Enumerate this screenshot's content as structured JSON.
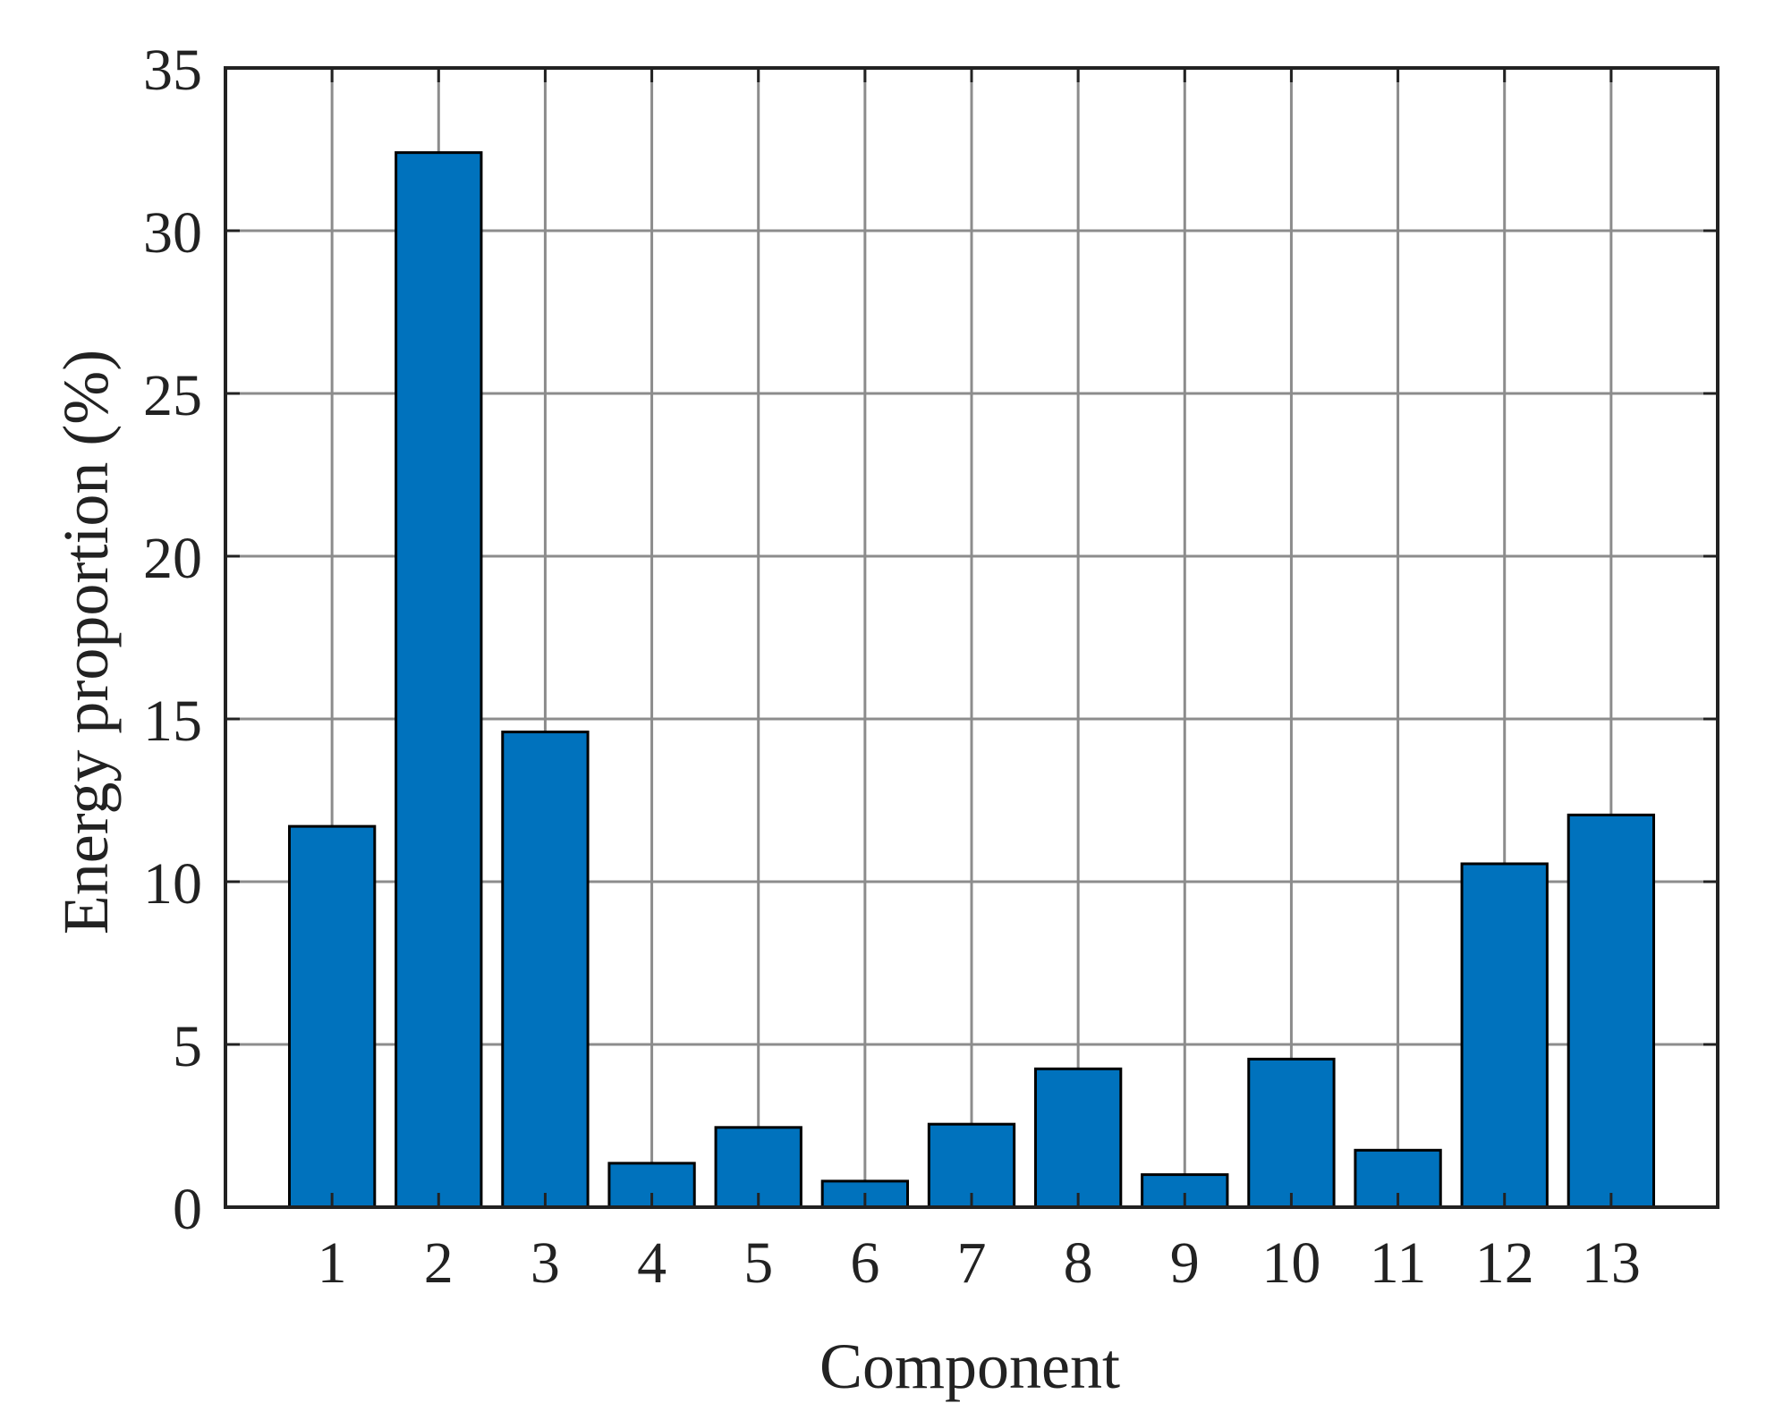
{
  "chart_data": {
    "type": "bar",
    "title": "",
    "xlabel": "Component",
    "ylabel": "Energy proportion (%)",
    "categories": [
      "1",
      "2",
      "3",
      "4",
      "5",
      "6",
      "7",
      "8",
      "9",
      "10",
      "11",
      "12",
      "13"
    ],
    "values": [
      11.7,
      32.4,
      14.6,
      1.35,
      2.45,
      0.8,
      2.55,
      4.25,
      1.0,
      4.55,
      1.75,
      10.55,
      12.05
    ],
    "ylim": [
      0,
      35
    ],
    "yticks": [
      "0",
      "5",
      "10",
      "15",
      "20",
      "25",
      "30",
      "35"
    ],
    "grid": true,
    "bar_color": "#0072BD",
    "bar_edge_color": "#000000"
  }
}
